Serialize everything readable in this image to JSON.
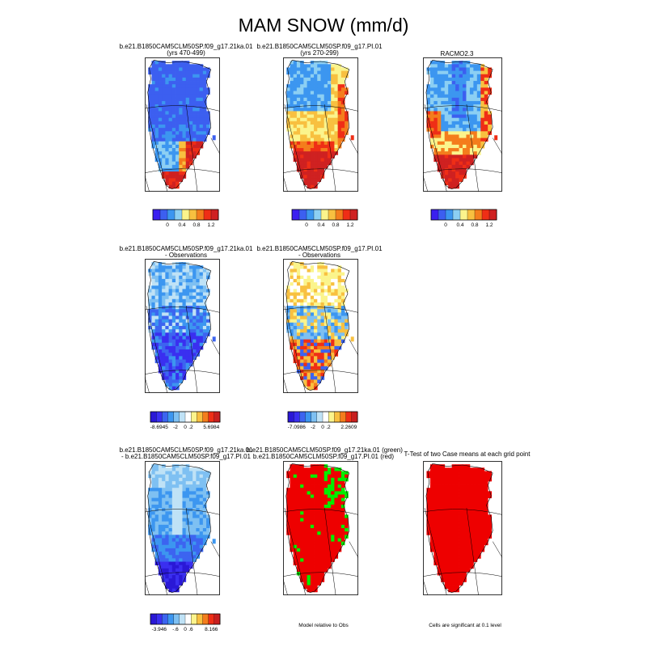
{
  "title": "MAM SNOW (mm/d)",
  "palettes": {
    "abs": [
      "#3a1ff0",
      "#3c5ff0",
      "#3c96f0",
      "#8ccff3",
      "#fbf48c",
      "#f8c040",
      "#f47d1c",
      "#ef2e16",
      "#cf2121"
    ],
    "diff": [
      "#2a18d6",
      "#3a2ff0",
      "#3c64f0",
      "#3c96f0",
      "#7ec0f2",
      "#bfe2f6",
      "#ffffff",
      "#fbf48c",
      "#f8c040",
      "#f47d1c",
      "#ef2e16",
      "#c81f1f"
    ],
    "green": "#00ee00",
    "red": "#ee0000"
  },
  "panels": [
    {
      "id": "p1",
      "title1": "b.e21.B1850CAM5CLM50SP.f09_g17.21ka.01",
      "title2": "(yrs 470-499)",
      "palette": "abs",
      "fill": "north-blue"
    },
    {
      "id": "p2",
      "title1": "b.e21.B1850CAM5CLM50SP.f09_g17.PI.01",
      "title2": "(yrs 270-299)",
      "palette": "abs",
      "fill": "pi-snow"
    },
    {
      "id": "p3",
      "title1": "RACMO2.3",
      "title2": "",
      "palette": "abs",
      "fill": "racmo"
    },
    {
      "id": "p4",
      "title1": "b.e21.B1850CAM5CLM50SP.f09_g17.21ka.01",
      "title2": "- Observations",
      "palette": "diff",
      "fill": "diff-blue"
    },
    {
      "id": "p5",
      "title1": "b.e21.B1850CAM5CLM50SP.f09_g17.PI.01",
      "title2": "- Observations",
      "palette": "diff",
      "fill": "diff-mixed"
    },
    {
      "id": "p7",
      "title1": "b.e21.B1850CAM5CLM50SP.f09_g17.21ka.01",
      "title2": " - b.e21.B1850CAM5CLM50SP.f09_g17.PI.01",
      "palette": "diff",
      "fill": "case-diff"
    },
    {
      "id": "p8",
      "title1": "b.e21.B1850CAM5CLM50SP.f09_g17.21ka.01 (green)",
      "title2": "b.e21.B1850CAM5CLM50SP.f09_g17.PI.01 (red)",
      "palette": "rg",
      "fill": "rg"
    },
    {
      "id": "p9",
      "title1": "T-Test of two Case means at each grid point",
      "title2": "",
      "palette": "rg",
      "fill": "sig"
    }
  ],
  "colorbars": [
    {
      "id": "cb1",
      "palette": "abs",
      "labels": [
        "0",
        "0.4",
        "0.8",
        "1.2"
      ]
    },
    {
      "id": "cb2",
      "palette": "abs",
      "labels": [
        "0",
        "0.4",
        "0.8",
        "1.2"
      ]
    },
    {
      "id": "cb3",
      "palette": "abs",
      "labels": [
        "0",
        "0.4",
        "0.8",
        "1.2"
      ]
    },
    {
      "id": "cb4",
      "palette": "diff",
      "labels": [
        "-8.6945",
        "-2",
        "0",
        ".2",
        "5.6984"
      ]
    },
    {
      "id": "cb5",
      "palette": "diff",
      "labels": [
        "-7.0986",
        "-2",
        "0",
        ".2",
        "2.2609"
      ]
    },
    {
      "id": "cb7",
      "palette": "diff",
      "labels": [
        "-3.946",
        "-.6",
        "0",
        ".6",
        "8.166"
      ]
    }
  ],
  "notes": {
    "model_relative": "Model relative to Obs",
    "significance": "Cells are significant at 0.1 level"
  }
}
